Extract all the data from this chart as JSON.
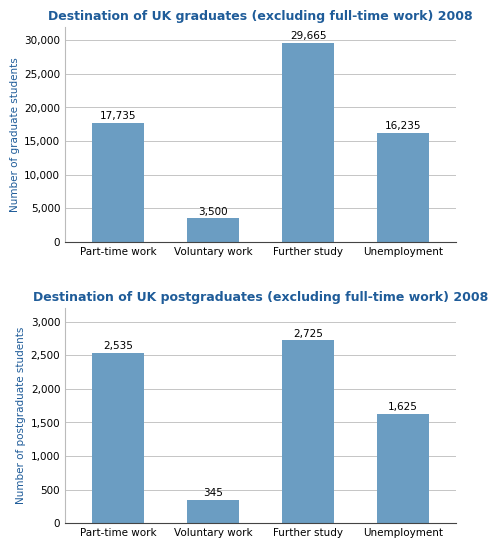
{
  "grad_title": "Destination of UK graduates (excluding full-time work) 2008",
  "postgrad_title": "Destination of UK postgraduates (excluding full-time work) 2008",
  "categories": [
    "Part-time work",
    "Voluntary work",
    "Further study",
    "Unemployment"
  ],
  "grad_values": [
    17735,
    3500,
    29665,
    16235
  ],
  "postgrad_values": [
    2535,
    345,
    2725,
    1625
  ],
  "grad_labels": [
    "17,735",
    "3,500",
    "29,665",
    "16,235"
  ],
  "postgrad_labels": [
    "2,535",
    "345",
    "2,725",
    "1,625"
  ],
  "bar_color": "#6b9dc2",
  "grad_ylabel": "Number of graduate students",
  "postgrad_ylabel": "Number of postgraduate students",
  "grad_ylim": [
    0,
    32000
  ],
  "postgrad_ylim": [
    0,
    3200
  ],
  "grad_yticks": [
    0,
    5000,
    10000,
    15000,
    20000,
    25000,
    30000
  ],
  "postgrad_yticks": [
    0,
    500,
    1000,
    1500,
    2000,
    2500,
    3000
  ],
  "title_color": "#1f5c99",
  "ylabel_color": "#1f5c99",
  "title_fontsize": 9,
  "ylabel_fontsize": 7.5,
  "tick_fontsize": 7.5,
  "annotation_fontsize": 7.5,
  "background_color": "#ffffff",
  "grid_color": "#bbbbbb"
}
